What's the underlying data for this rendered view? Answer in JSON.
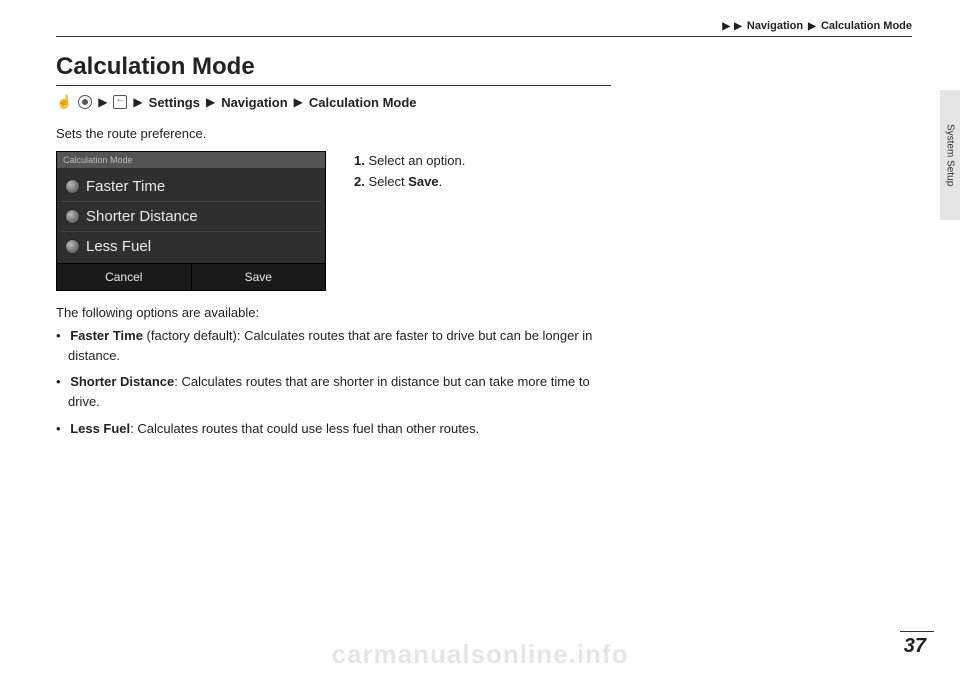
{
  "header": {
    "breadcrumb": [
      "Navigation",
      "Calculation Mode"
    ]
  },
  "title": "Calculation Mode",
  "nav_crumb": {
    "items": [
      "Settings",
      "Navigation",
      "Calculation Mode"
    ]
  },
  "intro": "Sets the route preference.",
  "screenshot": {
    "title": "Calculation Mode",
    "options": [
      "Faster Time",
      "Shorter Distance",
      "Less Fuel"
    ],
    "buttons": {
      "cancel": "Cancel",
      "save": "Save"
    },
    "colors": {
      "background": "#2f2f2f",
      "header_bg": "#555555",
      "header_text": "#bbbbbb",
      "option_text": "#eaeaea",
      "divider": "#444444",
      "footer_bg": "#1a1a1a",
      "footer_text": "#e8e8e8"
    }
  },
  "steps": [
    {
      "num": "1.",
      "text": "Select an option."
    },
    {
      "num": "2.",
      "prefix": "Select ",
      "bold": "Save",
      "suffix": "."
    }
  ],
  "avail_intro": "The following options are available:",
  "options_desc": [
    {
      "name": "Faster Time",
      "note": " (factory default)",
      "desc": ": Calculates routes that are faster to drive but can be longer in distance."
    },
    {
      "name": "Shorter Distance",
      "note": "",
      "desc": ": Calculates routes that are shorter in distance but can take more time to drive."
    },
    {
      "name": "Less Fuel",
      "note": "",
      "desc": ": Calculates routes that could use less fuel than other routes."
    }
  ],
  "side_tab": "System Setup",
  "page_number": "37",
  "watermark": "carmanualsonline.info"
}
